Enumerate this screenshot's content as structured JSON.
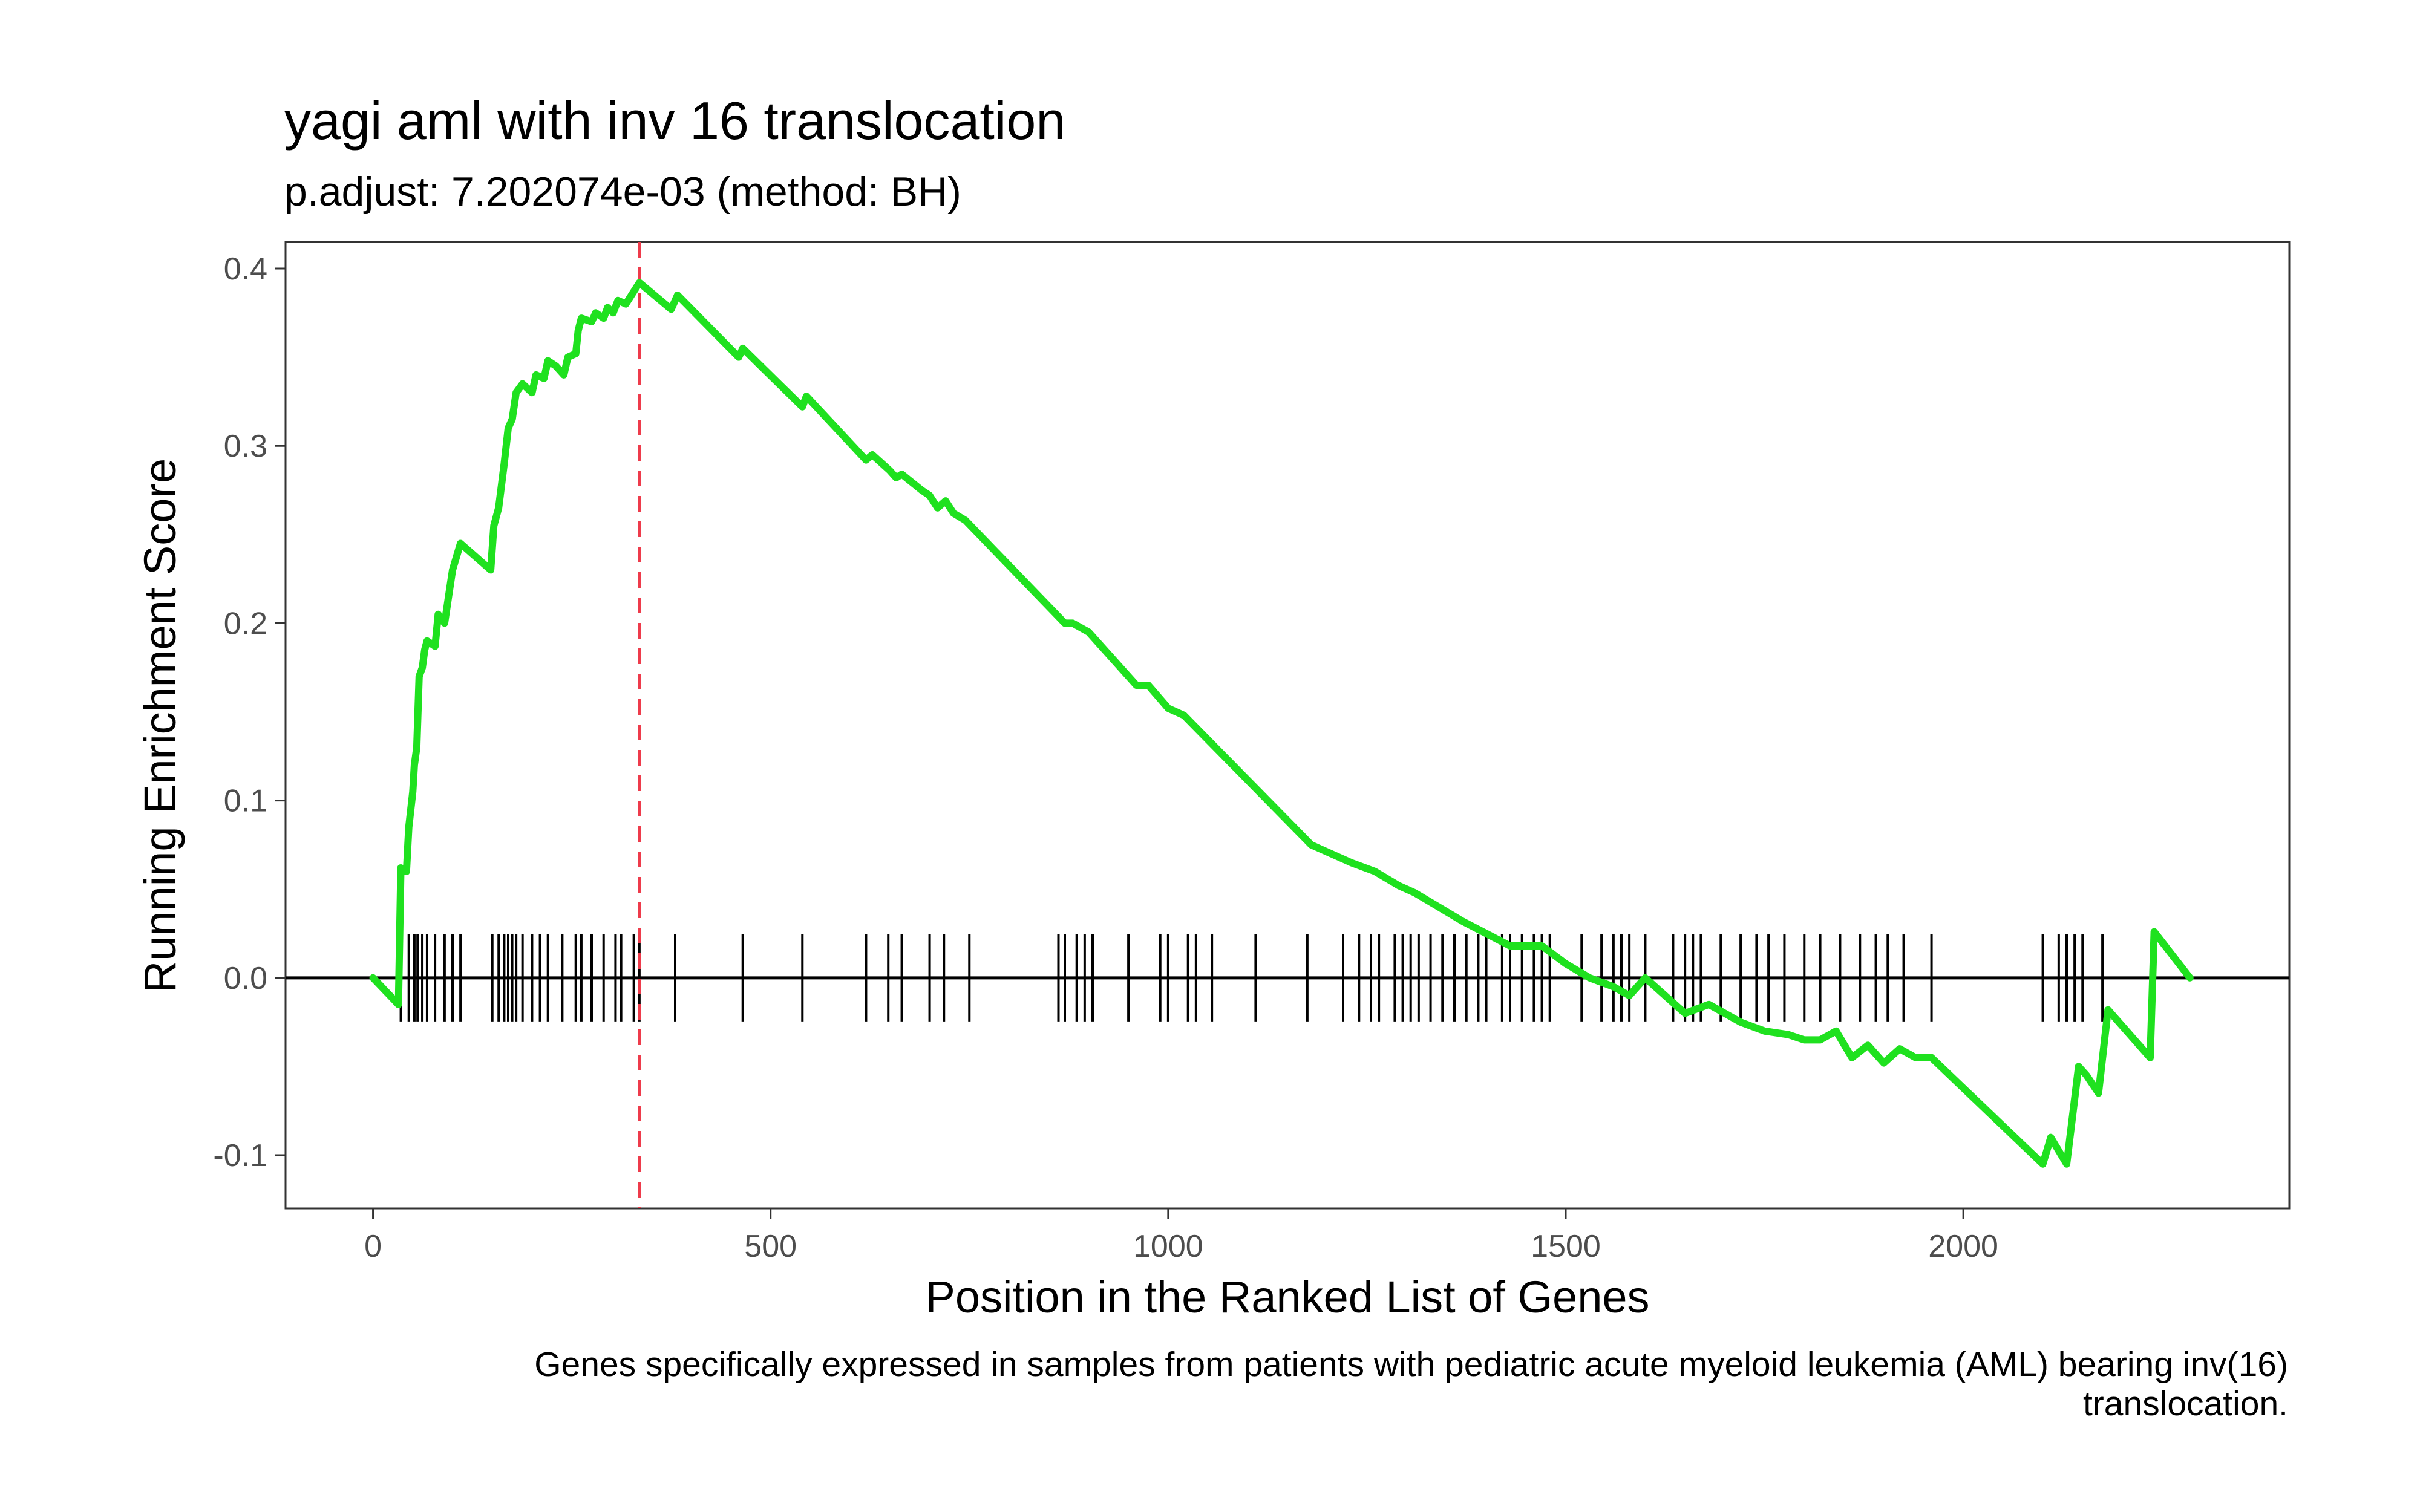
{
  "chart_data": {
    "type": "line",
    "title": "yagi aml with inv 16 translocation",
    "subtitle": "p.adjust: 7.202074e-03 (method: BH)",
    "xlabel": "Position in the Ranked List of Genes",
    "ylabel": "Running Enrichment Score",
    "caption_lines": [
      "Genes specifically expressed in samples from patients with pediatric acute myeloid leukemia (AML) bearing inv(16)",
      "translocation."
    ],
    "xlim": [
      -110,
      2410
    ],
    "ylim": [
      -0.13,
      0.415
    ],
    "x_ticks": [
      0,
      500,
      1000,
      1500,
      2000
    ],
    "x_tick_labels": [
      "0",
      "500",
      "1000",
      "1500",
      "2000"
    ],
    "y_ticks": [
      -0.1,
      0.0,
      0.1,
      0.2,
      0.3,
      0.4
    ],
    "y_tick_labels": [
      "-0.1",
      "0.0",
      "0.1",
      "0.2",
      "0.3",
      "0.4"
    ],
    "grid": false,
    "colors": {
      "es_line": "#1fe11f",
      "peak_line": "#ee3b4b",
      "hits": "#000000",
      "zero_line": "#000000",
      "panel_border": "#333333"
    },
    "peak_position": 335,
    "zero_line_y": 0,
    "series": [
      {
        "points": [
          [
            0,
            0.0
          ],
          [
            32,
            -0.015
          ],
          [
            35,
            0.062
          ],
          [
            42,
            0.06
          ],
          [
            45,
            0.085
          ],
          [
            50,
            0.105
          ],
          [
            52,
            0.12
          ],
          [
            55,
            0.13
          ],
          [
            58,
            0.17
          ],
          [
            62,
            0.175
          ],
          [
            65,
            0.185
          ],
          [
            68,
            0.19
          ],
          [
            78,
            0.187
          ],
          [
            82,
            0.205
          ],
          [
            90,
            0.2
          ],
          [
            95,
            0.215
          ],
          [
            100,
            0.23
          ],
          [
            110,
            0.245
          ],
          [
            148,
            0.23
          ],
          [
            152,
            0.255
          ],
          [
            158,
            0.265
          ],
          [
            165,
            0.29
          ],
          [
            170,
            0.31
          ],
          [
            175,
            0.315
          ],
          [
            180,
            0.33
          ],
          [
            188,
            0.335
          ],
          [
            200,
            0.33
          ],
          [
            205,
            0.34
          ],
          [
            215,
            0.338
          ],
          [
            220,
            0.348
          ],
          [
            230,
            0.345
          ],
          [
            240,
            0.34
          ],
          [
            245,
            0.35
          ],
          [
            255,
            0.352
          ],
          [
            258,
            0.365
          ],
          [
            262,
            0.372
          ],
          [
            275,
            0.37
          ],
          [
            280,
            0.375
          ],
          [
            290,
            0.372
          ],
          [
            295,
            0.378
          ],
          [
            302,
            0.375
          ],
          [
            308,
            0.382
          ],
          [
            318,
            0.38
          ],
          [
            325,
            0.385
          ],
          [
            335,
            0.392
          ],
          [
            375,
            0.377
          ],
          [
            383,
            0.385
          ],
          [
            460,
            0.35
          ],
          [
            465,
            0.355
          ],
          [
            540,
            0.322
          ],
          [
            545,
            0.328
          ],
          [
            620,
            0.292
          ],
          [
            628,
            0.295
          ],
          [
            650,
            0.286
          ],
          [
            658,
            0.282
          ],
          [
            665,
            0.284
          ],
          [
            690,
            0.275
          ],
          [
            700,
            0.272
          ],
          [
            710,
            0.265
          ],
          [
            720,
            0.269
          ],
          [
            730,
            0.262
          ],
          [
            745,
            0.258
          ],
          [
            870,
            0.2
          ],
          [
            880,
            0.2
          ],
          [
            900,
            0.195
          ],
          [
            960,
            0.165
          ],
          [
            975,
            0.165
          ],
          [
            1000,
            0.152
          ],
          [
            1020,
            0.148
          ],
          [
            1180,
            0.075
          ],
          [
            1230,
            0.065
          ],
          [
            1260,
            0.06
          ],
          [
            1290,
            0.052
          ],
          [
            1310,
            0.048
          ],
          [
            1340,
            0.04
          ],
          [
            1370,
            0.032
          ],
          [
            1400,
            0.025
          ],
          [
            1430,
            0.018
          ],
          [
            1470,
            0.018
          ],
          [
            1500,
            0.008
          ],
          [
            1530,
            0.0
          ],
          [
            1560,
            -0.005
          ],
          [
            1580,
            -0.01
          ],
          [
            1600,
            0.0
          ],
          [
            1650,
            -0.02
          ],
          [
            1680,
            -0.015
          ],
          [
            1720,
            -0.025
          ],
          [
            1750,
            -0.03
          ],
          [
            1780,
            -0.032
          ],
          [
            1800,
            -0.035
          ],
          [
            1820,
            -0.035
          ],
          [
            1840,
            -0.03
          ],
          [
            1860,
            -0.045
          ],
          [
            1880,
            -0.038
          ],
          [
            1900,
            -0.048
          ],
          [
            1920,
            -0.04
          ],
          [
            1940,
            -0.045
          ],
          [
            1960,
            -0.045
          ],
          [
            2100,
            -0.105
          ],
          [
            2110,
            -0.09
          ],
          [
            2130,
            -0.105
          ],
          [
            2145,
            -0.05
          ],
          [
            2155,
            -0.055
          ],
          [
            2170,
            -0.065
          ],
          [
            2182,
            -0.018
          ],
          [
            2235,
            -0.045
          ],
          [
            2240,
            0.026
          ],
          [
            2285,
            0.0
          ]
        ]
      }
    ],
    "hits": [
      35,
      45,
      52,
      56,
      62,
      68,
      78,
      90,
      100,
      110,
      150,
      158,
      165,
      170,
      175,
      180,
      188,
      200,
      210,
      220,
      238,
      255,
      262,
      275,
      290,
      305,
      312,
      328,
      335,
      380,
      465,
      540,
      620,
      648,
      665,
      700,
      718,
      750,
      862,
      870,
      885,
      895,
      905,
      950,
      990,
      1000,
      1025,
      1035,
      1055,
      1110,
      1175,
      1220,
      1240,
      1255,
      1265,
      1285,
      1295,
      1305,
      1315,
      1330,
      1345,
      1360,
      1375,
      1390,
      1400,
      1420,
      1430,
      1445,
      1460,
      1470,
      1480,
      1520,
      1545,
      1560,
      1570,
      1580,
      1600,
      1635,
      1650,
      1660,
      1670,
      1695,
      1720,
      1740,
      1755,
      1775,
      1800,
      1820,
      1845,
      1870,
      1890,
      1905,
      1925,
      1960,
      2100,
      2120,
      2130,
      2140,
      2150,
      2175
    ]
  }
}
